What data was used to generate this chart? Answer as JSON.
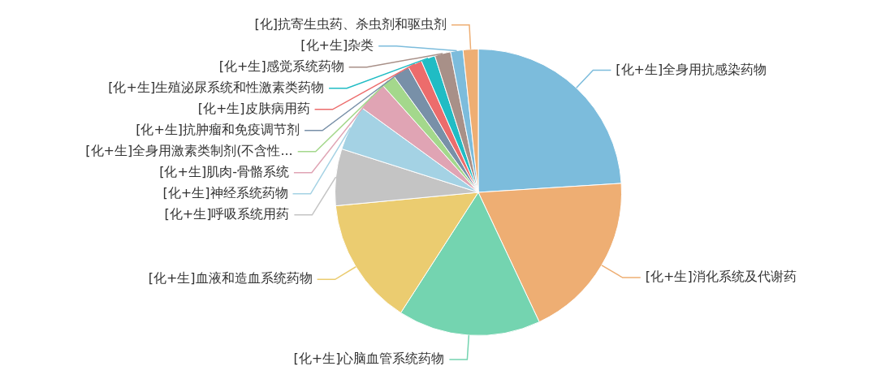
{
  "chart_data": {
    "type": "pie",
    "categories": [
      "[化+生]全身用抗感染药物",
      "[化+生]消化系统及代谢药",
      "[化+生]心脑血管系统药物",
      "[化+生]血液和造血系统药物",
      "[化+生]呼吸系统用药",
      "[化+生]神经系统药物",
      "[化+生]肌肉-骨骼系统",
      "[化+生]全身用激素类制剂(不含性...",
      "[化+生]抗肿瘤和免疫调节剂",
      "[化+生]皮肤病用药",
      "[化+生]生殖泌尿系统和性激素类药物",
      "[化+生]感觉系统药物",
      "[化+生]杂类",
      "[化]抗寄生虫药、杀虫剂和驱虫剂"
    ],
    "values": [
      24.0,
      19.0,
      16.1,
      14.4,
      6.4,
      5.1,
      3.4,
      1.6,
      1.9,
      1.6,
      1.6,
      1.8,
      1.4,
      1.7
    ],
    "colors": [
      "#7cbcdc",
      "#eeae73",
      "#74d4b0",
      "#ebcc70",
      "#c4c4c4",
      "#a4d2e4",
      "#e0a4b4",
      "#a4d88c",
      "#7890a8",
      "#ec6c6c",
      "#20bcc4",
      "#a89088",
      "#7cbcdc",
      "#eeae73"
    ],
    "legend": false
  }
}
